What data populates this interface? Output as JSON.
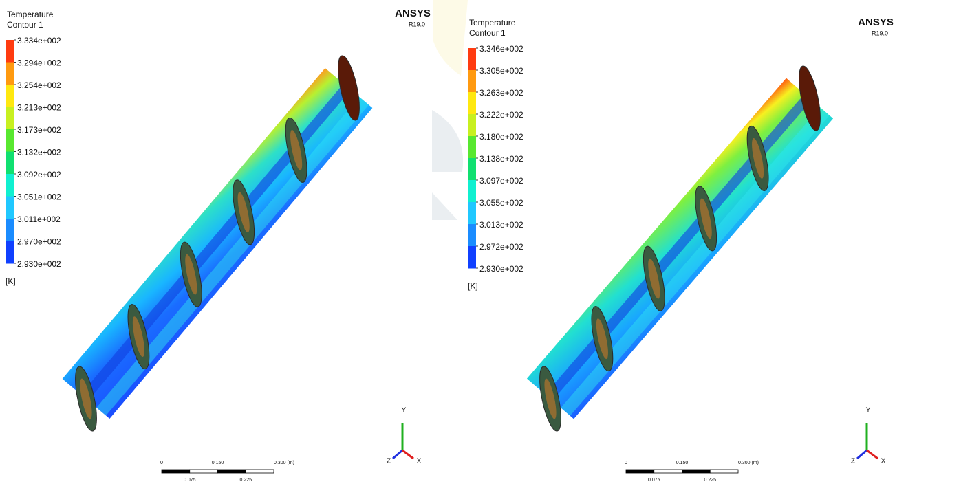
{
  "panels": [
    {
      "legend": {
        "title": "Temperature",
        "subtitle": "Contour 1",
        "levels": [
          "3.334e+002",
          "3.294e+002",
          "3.254e+002",
          "3.213e+002",
          "3.173e+002",
          "3.132e+002",
          "3.092e+002",
          "3.051e+002",
          "3.011e+002",
          "2.970e+002",
          "2.930e+002"
        ],
        "unit": "[K]"
      },
      "brand": "ANSYS",
      "version": "R19.0",
      "scale_bar": {
        "top": [
          "0",
          "0.150",
          "0.300 (m)"
        ],
        "bottom": [
          "0.075",
          "0.225"
        ]
      },
      "triad": [
        "Y",
        "Z",
        "X"
      ]
    },
    {
      "legend": {
        "title": "Temperature",
        "subtitle": "Contour 1",
        "levels": [
          "3.346e+002",
          "3.305e+002",
          "3.263e+002",
          "3.222e+002",
          "3.180e+002",
          "3.138e+002",
          "3.097e+002",
          "3.055e+002",
          "3.013e+002",
          "2.972e+002",
          "2.930e+002"
        ],
        "unit": "[K]"
      },
      "brand": "ANSYS",
      "version": "R19.0",
      "scale_bar": {
        "top": [
          "0",
          "0.150",
          "0.300 (m)"
        ],
        "bottom": [
          "0.075",
          "0.225"
        ]
      },
      "triad": [
        "Y",
        "Z",
        "X"
      ]
    }
  ]
}
